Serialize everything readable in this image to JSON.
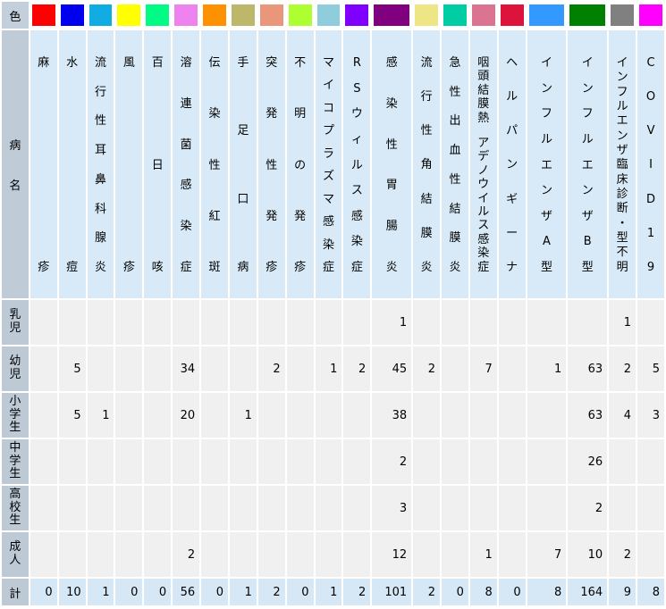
{
  "chart_data": {
    "type": "table",
    "corner_color_label": "色",
    "corner_name_label": "病名",
    "columns": [
      {
        "name": "麻疹",
        "color": "#FF0000"
      },
      {
        "name": "水痘",
        "color": "#0000EE"
      },
      {
        "name": "流行性耳鼻科腺炎",
        "color": "#11ACE1"
      },
      {
        "name": "風疹",
        "color": "#FFFF00"
      },
      {
        "name": "百日咳",
        "color": "#00FA86"
      },
      {
        "name": "溶連菌感染症",
        "color": "#EE82EE"
      },
      {
        "name": "伝染性紅斑",
        "color": "#FF9000"
      },
      {
        "name": "手足口病",
        "color": "#BDB76B"
      },
      {
        "name": "突発性発疹",
        "color": "#E9967A"
      },
      {
        "name": "不明の発疹",
        "color": "#ADFF2F"
      },
      {
        "name": "マイコプラズマ感染症",
        "color": "#8FCDDC"
      },
      {
        "name": "RSウィルス感染症",
        "color": "#8000FF"
      },
      {
        "name": "感染性胃腸炎",
        "color": "#800080",
        "wide": true
      },
      {
        "name": "流行性角結膜炎",
        "color": "#EEE685"
      },
      {
        "name": "急性出血性結膜炎",
        "color": "#00CDA3"
      },
      {
        "name": "咽頭結膜熱 アデノウイルス感染症",
        "color": "#DB7490"
      },
      {
        "name": "ヘルパンギーナ",
        "color": "#DC143C"
      },
      {
        "name": "インフルエンザA型",
        "color": "#3399FF",
        "wide": true
      },
      {
        "name": "インフルエンザB型",
        "color": "#008000",
        "wide": true
      },
      {
        "name": "インフルエンザ臨床診断・型不明",
        "color": "#808080"
      },
      {
        "name": "COVID19",
        "color": "#FF00FF"
      }
    ],
    "age_rows": [
      {
        "label": "乳児",
        "values": [
          "",
          "",
          "",
          "",
          "",
          "",
          "",
          "",
          "",
          "",
          "",
          "",
          "1",
          "",
          "",
          "",
          "",
          "",
          "",
          "1",
          ""
        ]
      },
      {
        "label": "幼児",
        "values": [
          "",
          "5",
          "",
          "",
          "",
          "34",
          "",
          "",
          "2",
          "",
          "1",
          "2",
          "45",
          "2",
          "",
          "7",
          "",
          "1",
          "63",
          "2",
          "5"
        ]
      },
      {
        "label": "小学生",
        "values": [
          "",
          "5",
          "1",
          "",
          "",
          "20",
          "",
          "1",
          "",
          "",
          "",
          "",
          "38",
          "",
          "",
          "",
          "",
          "",
          "63",
          "4",
          "3"
        ]
      },
      {
        "label": "中学生",
        "values": [
          "",
          "",
          "",
          "",
          "",
          "",
          "",
          "",
          "",
          "",
          "",
          "",
          "2",
          "",
          "",
          "",
          "",
          "",
          "26",
          "",
          ""
        ]
      },
      {
        "label": "高校生",
        "values": [
          "",
          "",
          "",
          "",
          "",
          "",
          "",
          "",
          "",
          "",
          "",
          "",
          "3",
          "",
          "",
          "",
          "",
          "",
          "2",
          "",
          ""
        ]
      },
      {
        "label": "成人",
        "values": [
          "",
          "",
          "",
          "",
          "",
          "2",
          "",
          "",
          "",
          "",
          "",
          "",
          "12",
          "",
          "",
          "1",
          "",
          "7",
          "10",
          "2",
          ""
        ]
      }
    ],
    "total_row": {
      "label": "計",
      "values": [
        "0",
        "10",
        "1",
        "0",
        "0",
        "56",
        "0",
        "1",
        "2",
        "0",
        "1",
        "2",
        "101",
        "2",
        "0",
        "8",
        "0",
        "8",
        "164",
        "9",
        "8"
      ]
    }
  }
}
